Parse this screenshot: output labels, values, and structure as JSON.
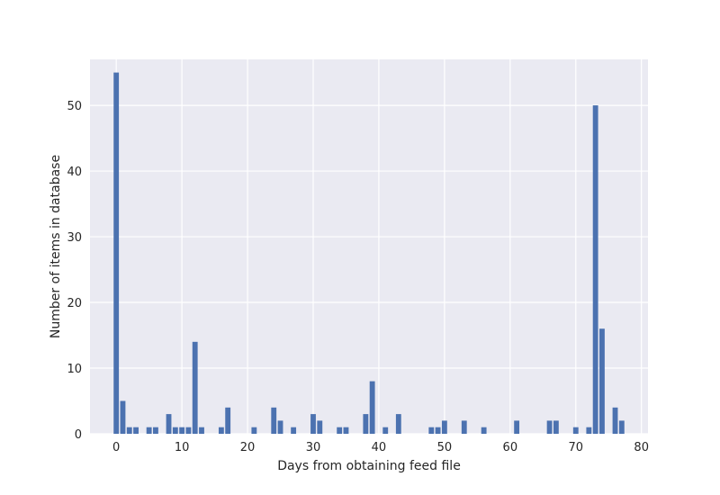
{
  "chart_data": {
    "type": "bar",
    "title": "",
    "xlabel": "Days from obtaining feed file",
    "ylabel": "Number of items in database",
    "xlim": [
      -4,
      81
    ],
    "ylim": [
      0,
      57
    ],
    "xticks": [
      0,
      10,
      20,
      30,
      40,
      50,
      60,
      70,
      80
    ],
    "yticks": [
      0,
      10,
      20,
      30,
      40,
      50
    ],
    "grid": true,
    "bar_width": 0.8,
    "colors": {
      "bar": "#4c72b0",
      "plot_background": "#eaeaf2",
      "grid": "#ffffff",
      "text": "#262626"
    },
    "points": [
      {
        "x": 0,
        "y": 55
      },
      {
        "x": 1,
        "y": 5
      },
      {
        "x": 2,
        "y": 1
      },
      {
        "x": 3,
        "y": 1
      },
      {
        "x": 5,
        "y": 1
      },
      {
        "x": 6,
        "y": 1
      },
      {
        "x": 8,
        "y": 3
      },
      {
        "x": 9,
        "y": 1
      },
      {
        "x": 10,
        "y": 1
      },
      {
        "x": 11,
        "y": 1
      },
      {
        "x": 12,
        "y": 14
      },
      {
        "x": 13,
        "y": 1
      },
      {
        "x": 16,
        "y": 1
      },
      {
        "x": 17,
        "y": 4
      },
      {
        "x": 21,
        "y": 1
      },
      {
        "x": 24,
        "y": 4
      },
      {
        "x": 25,
        "y": 2
      },
      {
        "x": 27,
        "y": 1
      },
      {
        "x": 30,
        "y": 3
      },
      {
        "x": 31,
        "y": 2
      },
      {
        "x": 34,
        "y": 1
      },
      {
        "x": 35,
        "y": 1
      },
      {
        "x": 38,
        "y": 3
      },
      {
        "x": 39,
        "y": 8
      },
      {
        "x": 41,
        "y": 1
      },
      {
        "x": 43,
        "y": 3
      },
      {
        "x": 48,
        "y": 1
      },
      {
        "x": 49,
        "y": 1
      },
      {
        "x": 50,
        "y": 2
      },
      {
        "x": 53,
        "y": 2
      },
      {
        "x": 56,
        "y": 1
      },
      {
        "x": 61,
        "y": 2
      },
      {
        "x": 66,
        "y": 2
      },
      {
        "x": 67,
        "y": 2
      },
      {
        "x": 70,
        "y": 1
      },
      {
        "x": 72,
        "y": 1
      },
      {
        "x": 73,
        "y": 50
      },
      {
        "x": 74,
        "y": 16
      },
      {
        "x": 76,
        "y": 4
      },
      {
        "x": 77,
        "y": 2
      }
    ]
  }
}
